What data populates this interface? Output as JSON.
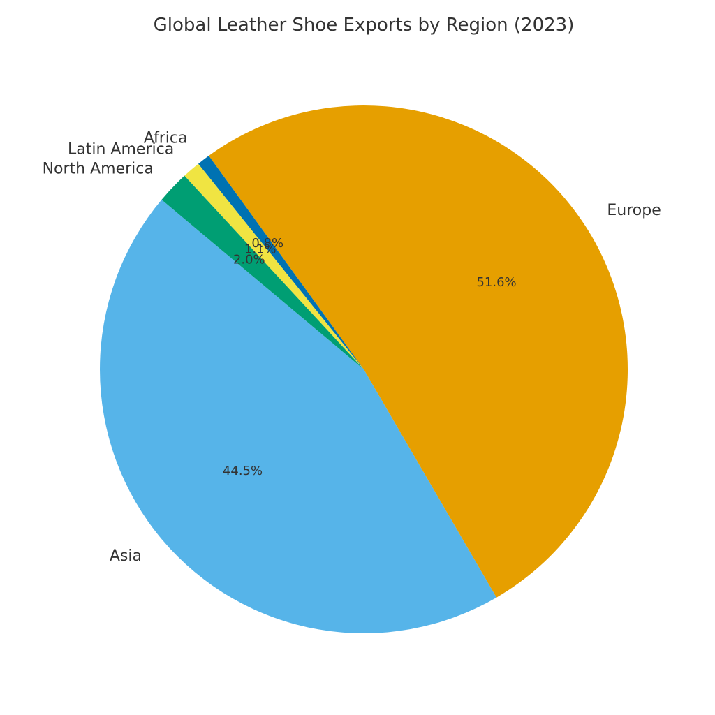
{
  "chart_data": {
    "type": "pie",
    "title": "Global Leather Shoe Exports by Region (2023)",
    "categories": [
      "Asia",
      "Europe",
      "Africa",
      "Latin America",
      "North America"
    ],
    "values": [
      44.5,
      51.6,
      0.8,
      1.1,
      2.0
    ],
    "percent_labels": [
      "44.5%",
      "51.6%",
      "0.8%",
      "1.1%",
      "2.0%"
    ],
    "colors": [
      "#56B4E9",
      "#E69F00",
      "#0072B2",
      "#F0E442",
      "#009E73"
    ],
    "start_angle_deg": 140,
    "direction": "counterclockwise"
  }
}
